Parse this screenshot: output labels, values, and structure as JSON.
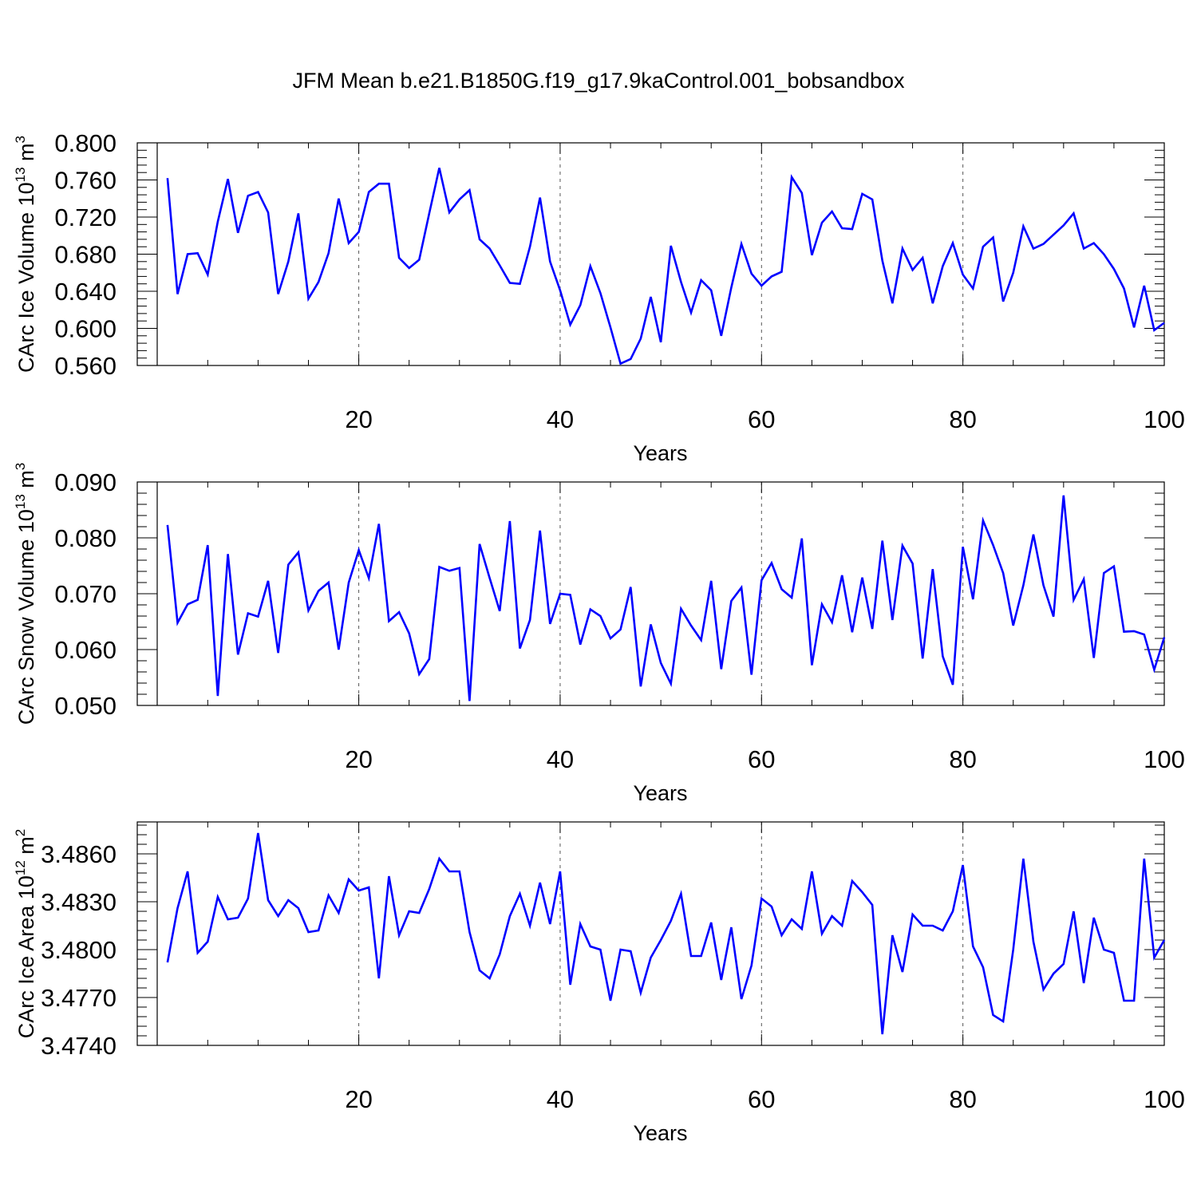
{
  "title": "JFM Mean b.e21.B1850G.f19_g17.9kaControl.001_bobsandbox",
  "colors": {
    "line": "#0000ff",
    "axis": "#000000",
    "grid": "#555555"
  },
  "chart_data": [
    {
      "type": "line",
      "id": "ice-volume",
      "ylabel": {
        "text": "CArc Ice Volume 10",
        "exp1": "13",
        "mid": " m",
        "exp2": "3"
      },
      "xlabel": "Years",
      "xlim": [
        -2,
        100
      ],
      "ylim": [
        0.56,
        0.8
      ],
      "yticks": [
        0.56,
        0.6,
        0.64,
        0.68,
        0.72,
        0.76,
        0.8
      ],
      "ytick_labels": [
        "0.560",
        "0.600",
        "0.640",
        "0.680",
        "0.720",
        "0.760",
        "0.800"
      ],
      "xticks": [
        20,
        40,
        60,
        80,
        100
      ],
      "xtick_labels": [
        "20",
        "40",
        "60",
        "80",
        "100"
      ],
      "x_start": 1,
      "values": [
        0.762,
        0.637,
        0.68,
        0.681,
        0.658,
        0.715,
        0.761,
        0.703,
        0.743,
        0.747,
        0.725,
        0.637,
        0.672,
        0.724,
        0.632,
        0.65,
        0.681,
        0.74,
        0.692,
        0.704,
        0.747,
        0.756,
        0.756,
        0.676,
        0.665,
        0.674,
        0.724,
        0.773,
        0.725,
        0.739,
        0.749,
        0.696,
        0.686,
        0.668,
        0.649,
        0.648,
        0.688,
        0.741,
        0.672,
        0.641,
        0.604,
        0.625,
        0.667,
        0.638,
        0.601,
        0.562,
        0.567,
        0.589,
        0.634,
        0.585,
        0.689,
        0.65,
        0.617,
        0.652,
        0.641,
        0.592,
        0.644,
        0.691,
        0.659,
        0.646,
        0.656,
        0.661,
        0.763,
        0.746,
        0.679,
        0.714,
        0.726,
        0.708,
        0.707,
        0.745,
        0.739,
        0.673,
        0.627,
        0.686,
        0.663,
        0.676,
        0.627,
        0.667,
        0.692,
        0.658,
        0.643,
        0.688,
        0.698,
        0.629,
        0.66,
        0.71,
        0.686,
        0.691,
        0.701,
        0.711,
        0.724,
        0.686,
        0.692,
        0.68,
        0.664,
        0.643,
        0.601,
        0.646,
        0.598,
        0.606
      ]
    },
    {
      "type": "line",
      "id": "snow-volume",
      "ylabel": {
        "text": "CArc Snow Volume 10",
        "exp1": "13",
        "mid": " m",
        "exp2": "3"
      },
      "xlabel": "Years",
      "xlim": [
        -2,
        100
      ],
      "ylim": [
        0.05,
        0.09
      ],
      "yticks": [
        0.05,
        0.06,
        0.07,
        0.08,
        0.09
      ],
      "ytick_labels": [
        "0.050",
        "0.060",
        "0.070",
        "0.080",
        "0.090"
      ],
      "xticks": [
        20,
        40,
        60,
        80,
        100
      ],
      "xtick_labels": [
        "20",
        "40",
        "60",
        "80",
        "100"
      ],
      "x_start": 1,
      "values": [
        0.0823,
        0.0648,
        0.0681,
        0.0689,
        0.0787,
        0.0517,
        0.0771,
        0.0591,
        0.0665,
        0.0659,
        0.0723,
        0.0594,
        0.0752,
        0.0774,
        0.067,
        0.0705,
        0.072,
        0.06,
        0.072,
        0.0778,
        0.0728,
        0.0825,
        0.0651,
        0.0667,
        0.0629,
        0.0556,
        0.0583,
        0.0748,
        0.0741,
        0.0746,
        0.0508,
        0.0789,
        0.0728,
        0.0669,
        0.083,
        0.0602,
        0.0653,
        0.0813,
        0.0646,
        0.07,
        0.0698,
        0.0609,
        0.0672,
        0.066,
        0.062,
        0.0636,
        0.0712,
        0.0534,
        0.0645,
        0.0576,
        0.0539,
        0.0673,
        0.0643,
        0.0617,
        0.0723,
        0.0565,
        0.0687,
        0.0711,
        0.0555,
        0.0724,
        0.0755,
        0.0708,
        0.0693,
        0.0799,
        0.0572,
        0.0681,
        0.0649,
        0.0733,
        0.0631,
        0.0729,
        0.0637,
        0.0795,
        0.0653,
        0.0786,
        0.0754,
        0.0584,
        0.0744,
        0.0588,
        0.0537,
        0.0784,
        0.069,
        0.0831,
        0.0787,
        0.0737,
        0.0643,
        0.0715,
        0.0806,
        0.0715,
        0.0659,
        0.0876,
        0.0689,
        0.0726,
        0.0585,
        0.0737,
        0.0749,
        0.0632,
        0.0633,
        0.0627,
        0.0564,
        0.0622
      ]
    },
    {
      "type": "line",
      "id": "ice-area",
      "ylabel": {
        "text": "CArc Ice Area 10",
        "exp1": "12",
        "mid": " m",
        "exp2": "2"
      },
      "xlabel": "Years",
      "xlim": [
        -2,
        100
      ],
      "ylim": [
        3.474,
        3.488
      ],
      "yticks": [
        3.474,
        3.477,
        3.48,
        3.483,
        3.486
      ],
      "ytick_labels": [
        "3.4740",
        "3.4770",
        "3.4800",
        "3.4830",
        "3.4860"
      ],
      "xticks": [
        20,
        40,
        60,
        80,
        100
      ],
      "xtick_labels": [
        "20",
        "40",
        "60",
        "80",
        "100"
      ],
      "x_start": 1,
      "values": [
        3.4792,
        3.4826,
        3.4849,
        3.4798,
        3.4805,
        3.4833,
        3.4819,
        3.482,
        3.4832,
        3.4873,
        3.4831,
        3.4821,
        3.4831,
        3.4826,
        3.4811,
        3.4812,
        3.4834,
        3.4823,
        3.4844,
        3.4837,
        3.4839,
        3.4782,
        3.4846,
        3.4809,
        3.4824,
        3.4823,
        3.4838,
        3.4857,
        3.4849,
        3.4849,
        3.4811,
        3.4787,
        3.4782,
        3.4797,
        3.4821,
        3.4835,
        3.4815,
        3.4842,
        3.4816,
        3.4849,
        3.4778,
        3.4816,
        3.4802,
        3.48,
        3.4768,
        3.48,
        3.4799,
        3.4773,
        3.4795,
        3.4806,
        3.4818,
        3.4835,
        3.4796,
        3.4796,
        3.4817,
        3.4781,
        3.4814,
        3.4769,
        3.479,
        3.4832,
        3.4827,
        3.4809,
        3.4819,
        3.4813,
        3.4849,
        3.481,
        3.4821,
        3.4815,
        3.4843,
        3.4836,
        3.4828,
        3.4747,
        3.4809,
        3.4786,
        3.4822,
        3.4815,
        3.4815,
        3.4812,
        3.4824,
        3.4853,
        3.4802,
        3.4789,
        3.4759,
        3.4755,
        3.48,
        3.4857,
        3.4805,
        3.4775,
        3.4785,
        3.4791,
        3.4824,
        3.4779,
        3.482,
        3.48,
        3.4798,
        3.4768,
        3.4768,
        3.4857,
        3.4795,
        3.4806
      ]
    }
  ]
}
